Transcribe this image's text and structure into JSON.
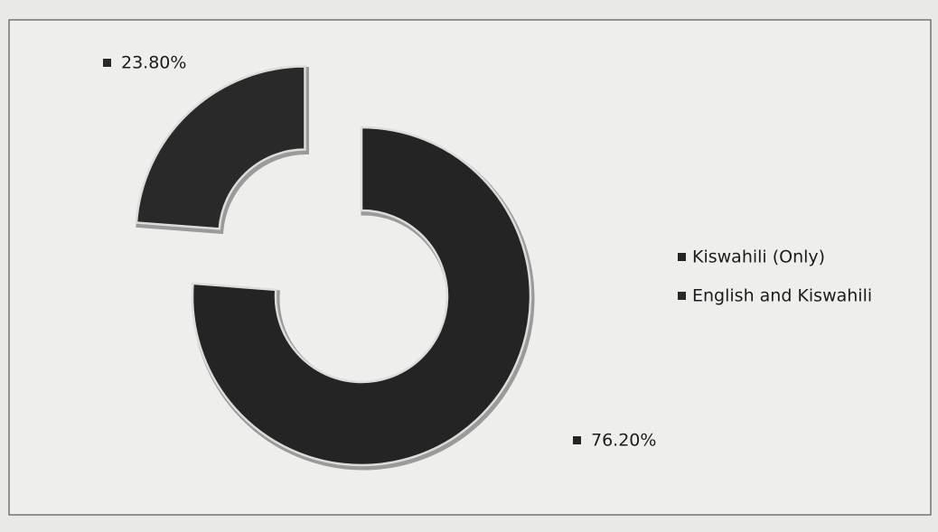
{
  "chart_data": {
    "type": "doughnut",
    "categories": [
      "Kiswahili (Only)",
      "English and Kiswahili"
    ],
    "values": [
      76.2,
      23.8
    ],
    "value_labels": [
      "76.20%",
      "23.80%"
    ],
    "colors": [
      "#242424",
      "#292929"
    ],
    "legend": "right"
  }
}
